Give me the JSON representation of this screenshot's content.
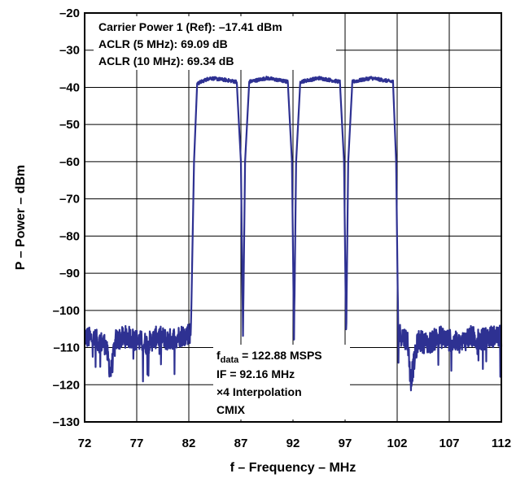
{
  "chart_data": {
    "type": "line",
    "xlabel": "f – Frequency – MHz",
    "ylabel": "P – Power – dBm",
    "xlim": [
      72,
      112
    ],
    "ylim": [
      -130,
      -20
    ],
    "x_ticks": [
      "72",
      "77",
      "82",
      "87",
      "92",
      "97",
      "102",
      "107",
      "112"
    ],
    "y_ticks": [
      "–20",
      "–30",
      "–40",
      "–50",
      "–60",
      "–70",
      "–80",
      "–90",
      "–100",
      "–110",
      "–120",
      "–130"
    ],
    "grid": true,
    "line_color": "#2e3192",
    "noise_floor_dbm": -107,
    "carrier_level_dbm": -38,
    "band_edges_mhz": [
      82.5,
      102.0
    ],
    "notch_centers_mhz": [
      87.2,
      92.1,
      97.1
    ],
    "series": [
      {
        "points": [
          [
            72,
            -107
          ],
          [
            73,
            -108
          ],
          [
            74,
            -109
          ],
          [
            74.5,
            -117
          ],
          [
            75,
            -108
          ],
          [
            76,
            -107
          ],
          [
            77,
            -108
          ],
          [
            78,
            -109
          ],
          [
            79,
            -107
          ],
          [
            80,
            -108
          ],
          [
            81,
            -107
          ],
          [
            82.2,
            -106
          ],
          [
            82.5,
            -60
          ],
          [
            82.8,
            -39
          ],
          [
            84,
            -37.5
          ],
          [
            85.5,
            -38
          ],
          [
            86.6,
            -38.5
          ],
          [
            87.0,
            -60
          ],
          [
            87.2,
            -107
          ],
          [
            87.4,
            -60
          ],
          [
            87.8,
            -38.5
          ],
          [
            89.5,
            -37.5
          ],
          [
            91.5,
            -38.5
          ],
          [
            91.9,
            -60
          ],
          [
            92.1,
            -108
          ],
          [
            92.3,
            -60
          ],
          [
            92.7,
            -38.5
          ],
          [
            94.5,
            -37.5
          ],
          [
            96.5,
            -38.5
          ],
          [
            96.9,
            -60
          ],
          [
            97.1,
            -108
          ],
          [
            97.3,
            -60
          ],
          [
            97.7,
            -38.5
          ],
          [
            99.5,
            -37.5
          ],
          [
            101.6,
            -38.5
          ],
          [
            101.9,
            -60
          ],
          [
            102.1,
            -106
          ],
          [
            103,
            -108
          ],
          [
            103.3,
            -119
          ],
          [
            104,
            -108
          ],
          [
            105,
            -109
          ],
          [
            106,
            -107
          ],
          [
            107,
            -108
          ],
          [
            108,
            -109
          ],
          [
            109,
            -107
          ],
          [
            110,
            -108
          ],
          [
            111,
            -107
          ],
          [
            112,
            -107
          ]
        ]
      }
    ],
    "annotations_top": [
      "Carrier Power 1 (Ref): –17.41 dBm",
      "ACLR (5 MHz): 69.09 dB",
      "ACLR (10 MHz): 69.34 dB"
    ],
    "annotations_bottom": {
      "fdata_main": "f",
      "fdata_sub": "data",
      "fdata_rest": " = 122.88 MSPS",
      "line2": "IF = 92.16 MHz",
      "line3": "×4 Interpolation",
      "line4": "CMIX"
    }
  }
}
